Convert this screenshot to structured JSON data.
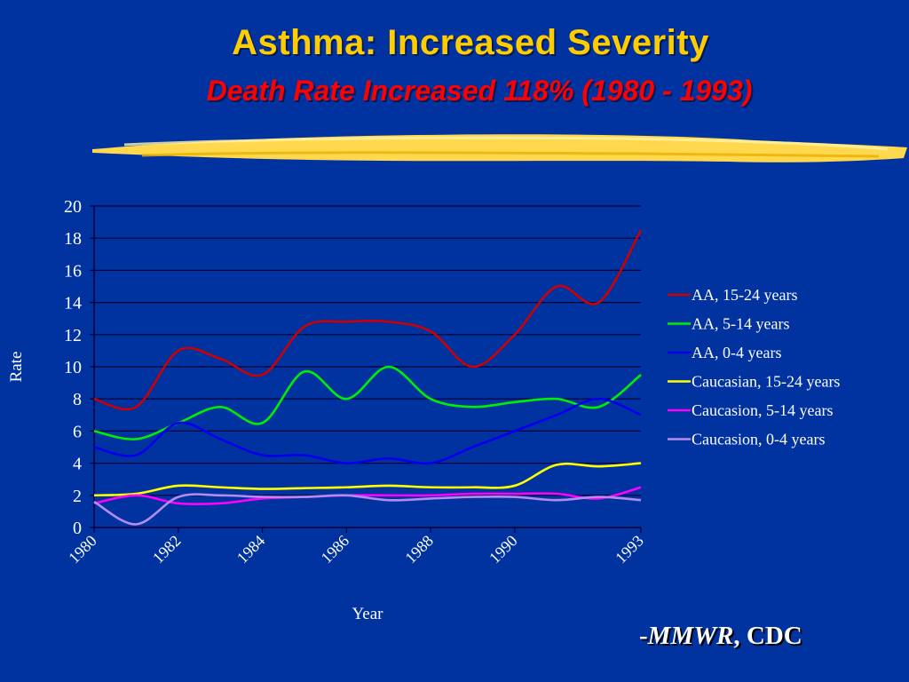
{
  "slide": {
    "title": "Asthma: Increased Severity",
    "subtitle": "Death Rate Increased 118% (1980 - 1993)",
    "source_prefix": "-",
    "source_italic": "MMWR",
    "source_rest": ", CDC"
  },
  "colors": {
    "background": "#0033a0",
    "title": "#ffcc00",
    "subtitle": "#ff0000",
    "brush_stroke": "#ffd84d"
  },
  "chart_data": {
    "type": "line",
    "xlabel": "Year",
    "ylabel": "Rate",
    "ylim": [
      0,
      20
    ],
    "yticks": [
      0,
      2,
      4,
      6,
      8,
      10,
      12,
      14,
      16,
      18,
      20
    ],
    "x": [
      1980,
      1981,
      1982,
      1983,
      1984,
      1985,
      1986,
      1987,
      1988,
      1989,
      1990,
      1991,
      1992,
      1993
    ],
    "xtick_labels": [
      "1980",
      "1982",
      "1984",
      "1986",
      "1988",
      "1990",
      "1993"
    ],
    "grid": "horizontal",
    "legend_position": "right",
    "series": [
      {
        "name": "AA, 15-24 years",
        "color": "#cc0000",
        "values": [
          8.0,
          7.5,
          11.0,
          10.5,
          9.5,
          12.5,
          12.8,
          12.8,
          12.2,
          10.0,
          12.0,
          15.0,
          14.0,
          18.5
        ]
      },
      {
        "name": "AA, 5-14 years",
        "color": "#00ee00",
        "values": [
          6.0,
          5.5,
          6.5,
          7.5,
          6.5,
          9.7,
          8.0,
          10.0,
          8.0,
          7.5,
          7.8,
          8.0,
          7.5,
          9.5
        ]
      },
      {
        "name": "AA, 0-4 years",
        "color": "#0000ee",
        "values": [
          5.0,
          4.5,
          6.5,
          5.5,
          4.5,
          4.5,
          4.0,
          4.3,
          4.0,
          5.0,
          6.0,
          7.0,
          8.0,
          7.0
        ]
      },
      {
        "name": "Caucasian, 15-24 years",
        "color": "#ffff00",
        "values": [
          2.0,
          2.1,
          2.6,
          2.5,
          2.4,
          2.45,
          2.5,
          2.6,
          2.5,
          2.5,
          2.6,
          3.9,
          3.8,
          4.0
        ]
      },
      {
        "name": "Caucasion, 5-14 years",
        "color": "#ff00ff",
        "values": [
          1.5,
          2.0,
          1.5,
          1.5,
          1.8,
          1.9,
          2.0,
          2.0,
          2.0,
          2.1,
          2.1,
          2.1,
          1.8,
          2.5
        ]
      },
      {
        "name": "Caucasion, 0-4 years",
        "color": "#b48cf0",
        "values": [
          1.6,
          0.2,
          1.9,
          2.0,
          1.9,
          1.9,
          2.0,
          1.7,
          1.8,
          1.9,
          1.9,
          1.7,
          1.9,
          1.7
        ]
      }
    ]
  }
}
